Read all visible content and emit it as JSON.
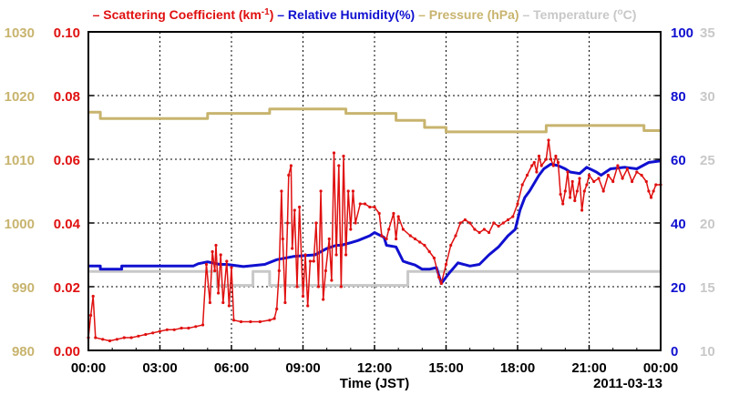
{
  "chart_data": {
    "type": "line",
    "title": "",
    "xlabel": "Time (JST)",
    "date_label": "2011-03-13",
    "grid": true,
    "x_ticks": [
      "00:00",
      "03:00",
      "06:00",
      "09:00",
      "12:00",
      "15:00",
      "18:00",
      "21:00",
      "00:00"
    ],
    "x_range_hours": [
      0,
      24
    ],
    "axes": {
      "pressure": {
        "side": "left-outer",
        "range": [
          980,
          1030
        ],
        "ticks": [
          "980",
          "990",
          "1000",
          "1010",
          "1020",
          "1030"
        ],
        "color": "#c8b46e"
      },
      "scattering": {
        "side": "left-inner",
        "range": [
          0.0,
          0.1
        ],
        "ticks": [
          "0.00",
          "0.02",
          "0.04",
          "0.06",
          "0.08",
          "0.10"
        ],
        "color": "#e01010"
      },
      "humidity": {
        "side": "right-inner",
        "range": [
          0,
          100
        ],
        "ticks": [
          "0",
          "20",
          "40",
          "60",
          "80",
          "100"
        ],
        "color": "#1010d0"
      },
      "temperature": {
        "side": "right-outer",
        "range": [
          10,
          35
        ],
        "ticks": [
          "10",
          "15",
          "20",
          "25",
          "30",
          "35"
        ],
        "color": "#c8c8c8"
      }
    },
    "legend": [
      {
        "key": "scattering",
        "dash": "–",
        "pre": "Scattering Coefficient (km",
        "sup": "-1",
        "post": ")",
        "color": "#e01010"
      },
      {
        "key": "humidity",
        "dash": "–",
        "pre": "Relative Humidity(%)",
        "sup": "",
        "post": "",
        "color": "#1010d0"
      },
      {
        "key": "pressure",
        "dash": "–",
        "pre": "Pressure (hPa)",
        "sup": "",
        "post": "",
        "color": "#c8b46e"
      },
      {
        "key": "temperature",
        "dash": "–",
        "pre": "Temperature (",
        "sup": "o",
        "post": "C)",
        "color": "#c8c8c8"
      }
    ],
    "series": [
      {
        "name": "Pressure (hPa)",
        "axis": "pressure",
        "color": "#c8b46e",
        "width": 3,
        "step": true,
        "points": [
          [
            0,
            1017.4
          ],
          [
            0.5,
            1017.4
          ],
          [
            0.5,
            1016.4
          ],
          [
            5.0,
            1016.4
          ],
          [
            5.0,
            1017.2
          ],
          [
            7.6,
            1017.2
          ],
          [
            7.6,
            1017.9
          ],
          [
            10.8,
            1017.9
          ],
          [
            10.8,
            1017.2
          ],
          [
            12.9,
            1017.2
          ],
          [
            12.9,
            1016.1
          ],
          [
            14.1,
            1016.1
          ],
          [
            14.1,
            1015.0
          ],
          [
            15.0,
            1015.0
          ],
          [
            15.0,
            1014.3
          ],
          [
            19.2,
            1014.3
          ],
          [
            19.2,
            1015.3
          ],
          [
            23.3,
            1015.3
          ],
          [
            23.3,
            1014.5
          ],
          [
            24.0,
            1014.5
          ]
        ]
      },
      {
        "name": "Temperature (C)",
        "axis": "temperature",
        "color": "#c8c8c8",
        "width": 3,
        "step": true,
        "points": [
          [
            0,
            16.2
          ],
          [
            5.4,
            16.2
          ],
          [
            5.4,
            15.1
          ],
          [
            6.9,
            15.1
          ],
          [
            6.9,
            16.2
          ],
          [
            7.6,
            16.2
          ],
          [
            7.6,
            15.1
          ],
          [
            13.4,
            15.1
          ],
          [
            13.4,
            16.2
          ],
          [
            24.0,
            16.2
          ]
        ]
      },
      {
        "name": "Relative Humidity(%)",
        "axis": "humidity",
        "color": "#1010d0",
        "width": 3,
        "step": false,
        "points": [
          [
            0,
            26.5
          ],
          [
            0.5,
            26.5
          ],
          [
            0.5,
            25.5
          ],
          [
            1.4,
            25.5
          ],
          [
            1.4,
            26.5
          ],
          [
            4.4,
            26.5
          ],
          [
            4.6,
            27.2
          ],
          [
            5.0,
            27.8
          ],
          [
            5.5,
            27.0
          ],
          [
            5.8,
            27.0
          ],
          [
            6.5,
            26.3
          ],
          [
            7.4,
            27.0
          ],
          [
            7.9,
            28.5
          ],
          [
            8.6,
            29.5
          ],
          [
            9.5,
            30.0
          ],
          [
            10.0,
            32.0
          ],
          [
            10.4,
            33.0
          ],
          [
            10.6,
            33.0
          ],
          [
            11.0,
            33.8
          ],
          [
            11.3,
            34.5
          ],
          [
            11.8,
            36.0
          ],
          [
            12.0,
            37.0
          ],
          [
            12.4,
            35.5
          ],
          [
            12.5,
            33.0
          ],
          [
            12.9,
            32.5
          ],
          [
            13.2,
            28.0
          ],
          [
            13.4,
            27.5
          ],
          [
            13.7,
            26.8
          ],
          [
            14.0,
            25.5
          ],
          [
            14.3,
            25.5
          ],
          [
            14.6,
            26.0
          ],
          [
            14.8,
            21.0
          ],
          [
            15.1,
            24.0
          ],
          [
            15.5,
            27.5
          ],
          [
            16.0,
            26.5
          ],
          [
            16.4,
            27.0
          ],
          [
            16.8,
            30.0
          ],
          [
            17.2,
            32.5
          ],
          [
            17.6,
            36.0
          ],
          [
            17.9,
            38.0
          ],
          [
            18.1,
            44.0
          ],
          [
            18.3,
            48.0
          ],
          [
            18.5,
            50.0
          ],
          [
            18.9,
            55.0
          ],
          [
            19.1,
            57.0
          ],
          [
            19.4,
            58.5
          ],
          [
            19.7,
            58.0
          ],
          [
            20.0,
            57.0
          ],
          [
            20.2,
            56.0
          ],
          [
            20.6,
            55.5
          ],
          [
            20.9,
            57.5
          ],
          [
            21.3,
            56.0
          ],
          [
            21.5,
            55.0
          ],
          [
            21.9,
            57.0
          ],
          [
            22.5,
            57.5
          ],
          [
            23.0,
            57.0
          ],
          [
            23.5,
            59.0
          ],
          [
            24.0,
            59.5
          ]
        ]
      },
      {
        "name": "Scattering Coefficient (km-1)",
        "axis": "scattering",
        "color": "#e01010",
        "width": 1.5,
        "markers": true,
        "step": false,
        "points": [
          [
            0,
            0.004
          ],
          [
            0.1,
            0.011
          ],
          [
            0.2,
            0.017
          ],
          [
            0.3,
            0.004
          ],
          [
            0.6,
            0.0035
          ],
          [
            0.9,
            0.003
          ],
          [
            1.2,
            0.0035
          ],
          [
            1.5,
            0.004
          ],
          [
            1.8,
            0.004
          ],
          [
            2.1,
            0.0045
          ],
          [
            2.4,
            0.005
          ],
          [
            2.7,
            0.0055
          ],
          [
            3.0,
            0.006
          ],
          [
            3.3,
            0.0065
          ],
          [
            3.6,
            0.0065
          ],
          [
            3.9,
            0.007
          ],
          [
            4.2,
            0.007
          ],
          [
            4.5,
            0.0075
          ],
          [
            4.8,
            0.008
          ],
          [
            4.95,
            0.027
          ],
          [
            5.1,
            0.015
          ],
          [
            5.2,
            0.031
          ],
          [
            5.3,
            0.025
          ],
          [
            5.35,
            0.033
          ],
          [
            5.45,
            0.018
          ],
          [
            5.55,
            0.03
          ],
          [
            5.65,
            0.015
          ],
          [
            5.8,
            0.028
          ],
          [
            5.9,
            0.014
          ],
          [
            6.0,
            0.026
          ],
          [
            6.1,
            0.0095
          ],
          [
            6.4,
            0.009
          ],
          [
            6.8,
            0.009
          ],
          [
            7.2,
            0.009
          ],
          [
            7.6,
            0.0095
          ],
          [
            7.8,
            0.01
          ],
          [
            7.9,
            0.013
          ],
          [
            8.0,
            0.025
          ],
          [
            8.1,
            0.05
          ],
          [
            8.15,
            0.035
          ],
          [
            8.25,
            0.015
          ],
          [
            8.35,
            0.04
          ],
          [
            8.4,
            0.055
          ],
          [
            8.5,
            0.058
          ],
          [
            8.55,
            0.032
          ],
          [
            8.65,
            0.044
          ],
          [
            8.75,
            0.02
          ],
          [
            8.85,
            0.045
          ],
          [
            9.0,
            0.017
          ],
          [
            9.1,
            0.03
          ],
          [
            9.2,
            0.014
          ],
          [
            9.3,
            0.028
          ],
          [
            9.45,
            0.028
          ],
          [
            9.55,
            0.04
          ],
          [
            9.65,
            0.02
          ],
          [
            9.75,
            0.05
          ],
          [
            9.85,
            0.016
          ],
          [
            9.95,
            0.025
          ],
          [
            10.1,
            0.035
          ],
          [
            10.2,
            0.022
          ],
          [
            10.3,
            0.062
          ],
          [
            10.4,
            0.03
          ],
          [
            10.5,
            0.058
          ],
          [
            10.6,
            0.02
          ],
          [
            10.7,
            0.061
          ],
          [
            10.8,
            0.03
          ],
          [
            10.9,
            0.05
          ],
          [
            11.0,
            0.038
          ],
          [
            11.1,
            0.05
          ],
          [
            11.2,
            0.04
          ],
          [
            11.4,
            0.046
          ],
          [
            11.6,
            0.046
          ],
          [
            11.8,
            0.045
          ],
          [
            12.0,
            0.045
          ],
          [
            12.2,
            0.043
          ],
          [
            12.3,
            0.036
          ],
          [
            12.5,
            0.035
          ],
          [
            12.6,
            0.038
          ],
          [
            12.8,
            0.043
          ],
          [
            12.9,
            0.035
          ],
          [
            13.0,
            0.042
          ],
          [
            13.2,
            0.038
          ],
          [
            13.5,
            0.036
          ],
          [
            13.7,
            0.035
          ],
          [
            13.9,
            0.034
          ],
          [
            14.1,
            0.033
          ],
          [
            14.3,
            0.031
          ],
          [
            14.5,
            0.029
          ],
          [
            14.7,
            0.023
          ],
          [
            14.8,
            0.021
          ],
          [
            15.0,
            0.027
          ],
          [
            15.2,
            0.033
          ],
          [
            15.4,
            0.036
          ],
          [
            15.6,
            0.04
          ],
          [
            15.8,
            0.041
          ],
          [
            16.0,
            0.04
          ],
          [
            16.2,
            0.038
          ],
          [
            16.4,
            0.037
          ],
          [
            16.6,
            0.038
          ],
          [
            16.8,
            0.037
          ],
          [
            17.0,
            0.04
          ],
          [
            17.2,
            0.039
          ],
          [
            17.4,
            0.04
          ],
          [
            17.6,
            0.041
          ],
          [
            17.8,
            0.042
          ],
          [
            18.0,
            0.046
          ],
          [
            18.2,
            0.052
          ],
          [
            18.4,
            0.055
          ],
          [
            18.6,
            0.058
          ],
          [
            18.7,
            0.059
          ],
          [
            18.8,
            0.056
          ],
          [
            18.9,
            0.061
          ],
          [
            19.0,
            0.058
          ],
          [
            19.2,
            0.06
          ],
          [
            19.3,
            0.066
          ],
          [
            19.4,
            0.06
          ],
          [
            19.5,
            0.058
          ],
          [
            19.6,
            0.061
          ],
          [
            19.7,
            0.059
          ],
          [
            19.8,
            0.049
          ],
          [
            19.9,
            0.046
          ],
          [
            20.0,
            0.05
          ],
          [
            20.1,
            0.056
          ],
          [
            20.2,
            0.048
          ],
          [
            20.3,
            0.053
          ],
          [
            20.4,
            0.047
          ],
          [
            20.5,
            0.05
          ],
          [
            20.6,
            0.054
          ],
          [
            20.7,
            0.044
          ],
          [
            20.8,
            0.05
          ],
          [
            20.9,
            0.052
          ],
          [
            21.0,
            0.055
          ],
          [
            21.2,
            0.053
          ],
          [
            21.4,
            0.054
          ],
          [
            21.6,
            0.05
          ],
          [
            21.8,
            0.055
          ],
          [
            22.0,
            0.053
          ],
          [
            22.2,
            0.058
          ],
          [
            22.4,
            0.054
          ],
          [
            22.6,
            0.057
          ],
          [
            22.8,
            0.053
          ],
          [
            23.0,
            0.056
          ],
          [
            23.2,
            0.055
          ],
          [
            23.4,
            0.053
          ],
          [
            23.5,
            0.05
          ],
          [
            23.6,
            0.048
          ],
          [
            23.7,
            0.05
          ],
          [
            23.8,
            0.052
          ],
          [
            24.0,
            0.052
          ]
        ]
      }
    ]
  }
}
